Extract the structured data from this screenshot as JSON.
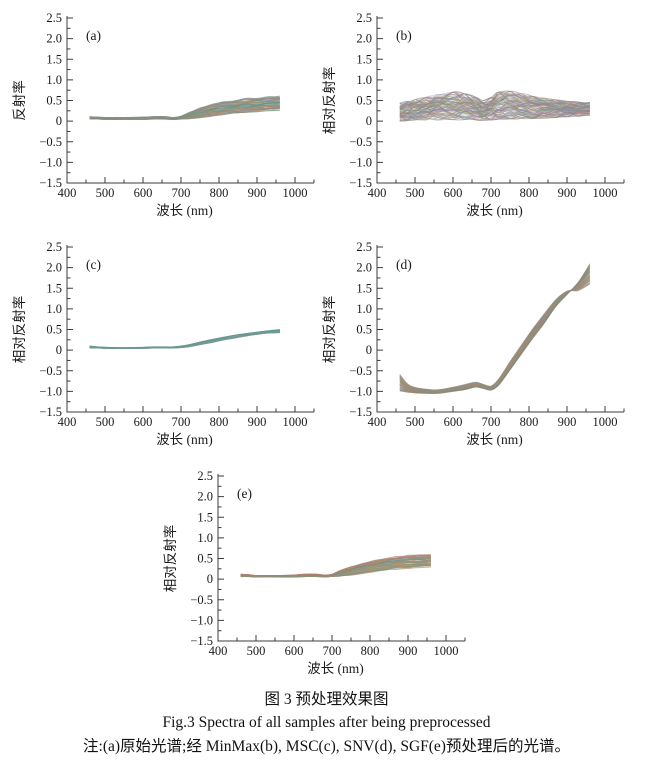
{
  "figure": {
    "caption_zh": "图 3  预处理效果图",
    "caption_en": "Fig.3  Spectra of all samples after being preprocessed",
    "note": "注:(a)原始光谱;经 MinMax(b), MSC(c), SNV(d), SGF(e)预处理后的光谱。"
  },
  "axes": {
    "xlabel": "波长 (nm)",
    "xlim": [
      400,
      1050
    ],
    "ylim": [
      -1.5,
      2.5
    ],
    "x_major_ticks": [
      400,
      500,
      600,
      700,
      800,
      900,
      1000
    ],
    "x_minor_ticks": [
      450,
      550,
      650,
      750,
      850,
      950,
      1050
    ],
    "y_major_ticks": [
      2.5,
      2.0,
      1.5,
      1.0,
      0.5,
      0,
      -0.5,
      -1.0,
      -1.5
    ],
    "y_major_labels": [
      "2.5",
      "2.0",
      "1.5",
      "1.0",
      "0.5",
      "0",
      "−0.5",
      "−1.0",
      "−1.5"
    ],
    "y_minor_ticks": [
      2.25,
      1.75,
      1.25,
      0.75,
      0.25,
      -0.25,
      -0.75,
      -1.25
    ],
    "axis_color": "#3c3c3c",
    "text_color": "#1a1a1a"
  },
  "palettes": {
    "default": [
      "#6b948e",
      "#8f9a72",
      "#b98a5e",
      "#7c8fa6",
      "#9b8f7e",
      "#ab7d72",
      "#5f8f7c",
      "#a6977e",
      "#8a8f94",
      "#bd9064"
    ],
    "teal": [
      "#5f938f",
      "#6f9d98",
      "#7aa39e",
      "#84a8a3",
      "#6b908c",
      "#75938f",
      "#8aa9a4"
    ],
    "noisy": [
      "#6b948e",
      "#8f9a72",
      "#b98a5e",
      "#7c8fa6",
      "#ab7d72",
      "#5f8f7c",
      "#a6977e",
      "#8a8f94",
      "#b07a8a",
      "#6a89b0",
      "#7aa35f",
      "#bd9064",
      "#9a7ab0",
      "#c08080"
    ]
  },
  "chart_data": [
    {
      "id": "a",
      "type": "line",
      "panel_label": "(a)",
      "ylabel": "反射率",
      "xlabel": "波长 (nm)",
      "description": "Raw reflectance spectra of all samples: flat band near 0.05–0.1 from 460–700 nm, rising to 0.27–0.6 at 960 nm",
      "x": [
        460,
        480,
        500,
        530,
        560,
        600,
        630,
        660,
        680,
        700,
        720,
        750,
        780,
        810,
        840,
        870,
        900,
        930,
        960
      ],
      "series": [
        {
          "name": "envelope_low",
          "values": [
            0.05,
            0.05,
            0.04,
            0.04,
            0.04,
            0.04,
            0.05,
            0.05,
            0.04,
            0.05,
            0.06,
            0.09,
            0.12,
            0.16,
            0.19,
            0.22,
            0.24,
            0.26,
            0.27
          ]
        },
        {
          "name": "envelope_high",
          "values": [
            0.11,
            0.1,
            0.09,
            0.09,
            0.09,
            0.1,
            0.11,
            0.11,
            0.09,
            0.12,
            0.2,
            0.32,
            0.4,
            0.46,
            0.5,
            0.54,
            0.56,
            0.58,
            0.6
          ]
        }
      ],
      "n_lines": 70,
      "jitter": 0.18,
      "opacity": 0.55,
      "stroke_width": 0.8,
      "palette": "default"
    },
    {
      "id": "b",
      "type": "line",
      "panel_label": "(b)",
      "ylabel": "相对反射率",
      "xlabel": "波长 (nm)",
      "description": "MinMax-normalized spectra: broad noisy band 0–0.7 with humps near 600 and 740 nm and a dip near 690 nm",
      "x": [
        460,
        480,
        500,
        530,
        560,
        600,
        630,
        660,
        680,
        700,
        720,
        750,
        780,
        810,
        840,
        870,
        900,
        930,
        960
      ],
      "series": [
        {
          "name": "envelope_low",
          "values": [
            0.02,
            0.03,
            0.04,
            0.05,
            0.05,
            0.06,
            0.06,
            0.05,
            0.04,
            0.05,
            0.07,
            0.08,
            0.08,
            0.08,
            0.09,
            0.1,
            0.12,
            0.13,
            0.15
          ]
        },
        {
          "name": "envelope_high",
          "values": [
            0.42,
            0.46,
            0.5,
            0.56,
            0.62,
            0.68,
            0.64,
            0.56,
            0.48,
            0.55,
            0.68,
            0.7,
            0.64,
            0.58,
            0.54,
            0.5,
            0.47,
            0.45,
            0.44
          ]
        }
      ],
      "n_lines": 110,
      "jitter": 0.55,
      "opacity": 0.4,
      "stroke_width": 0.7,
      "palette": "noisy"
    },
    {
      "id": "c",
      "type": "line",
      "panel_label": "(c)",
      "ylabel": "相对反射率",
      "xlabel": "波长 (nm)",
      "description": "MSC-corrected spectra: very narrow teal band, flat near 0.05 until 700 nm, rising to about 0.42–0.5 at 960 nm",
      "x": [
        460,
        480,
        500,
        530,
        560,
        600,
        630,
        660,
        680,
        700,
        720,
        750,
        780,
        810,
        840,
        870,
        900,
        930,
        960
      ],
      "series": [
        {
          "name": "envelope_low",
          "values": [
            0.05,
            0.05,
            0.04,
            0.04,
            0.04,
            0.04,
            0.05,
            0.05,
            0.05,
            0.06,
            0.08,
            0.13,
            0.18,
            0.24,
            0.29,
            0.34,
            0.38,
            0.41,
            0.42
          ]
        },
        {
          "name": "envelope_high",
          "values": [
            0.1,
            0.08,
            0.07,
            0.06,
            0.06,
            0.07,
            0.08,
            0.08,
            0.08,
            0.1,
            0.13,
            0.2,
            0.26,
            0.31,
            0.36,
            0.4,
            0.44,
            0.47,
            0.5
          ]
        }
      ],
      "n_lines": 45,
      "jitter": 0.2,
      "opacity": 0.5,
      "stroke_width": 0.8,
      "palette": "teal"
    },
    {
      "id": "d",
      "type": "line",
      "panel_label": "(d)",
      "ylabel": "相对反射率",
      "xlabel": "波长 (nm)",
      "description": "SNV-transformed spectra: start ≈ −1 to −0.6 at 460 nm, trough ≈ −1.05 near 550 nm, small bump at 650 nm, steep rise after 700 nm crossing near (890, 1.4) and fanning to 1.6–2.1 at 960 nm",
      "x": [
        460,
        480,
        500,
        530,
        560,
        600,
        630,
        660,
        680,
        700,
        720,
        750,
        780,
        810,
        840,
        870,
        900,
        930,
        960
      ],
      "series": [
        {
          "name": "envelope_low",
          "values": [
            -1.0,
            -1.02,
            -1.04,
            -1.05,
            -1.05,
            -1.0,
            -0.96,
            -0.9,
            -0.93,
            -0.97,
            -0.85,
            -0.48,
            -0.1,
            0.28,
            0.65,
            1.05,
            1.35,
            1.45,
            1.6
          ]
        },
        {
          "name": "envelope_high",
          "values": [
            -0.58,
            -0.82,
            -0.9,
            -0.95,
            -0.96,
            -0.9,
            -0.84,
            -0.78,
            -0.83,
            -0.87,
            -0.7,
            -0.28,
            0.12,
            0.52,
            0.88,
            1.22,
            1.43,
            1.65,
            2.1
          ]
        }
      ],
      "n_lines": 60,
      "jitter": 0.12,
      "opacity": 0.5,
      "stroke_width": 0.8,
      "palette": "default",
      "pinch_x": 905
    },
    {
      "id": "e",
      "type": "line",
      "panel_label": "(e)",
      "ylabel": "相对反射率",
      "xlabel": "波长 (nm)",
      "description": "SGF-smoothed spectra: flat band near 0.05–0.12 until 700 nm, rising smoothly to 0.3–0.6 at 960 nm",
      "x": [
        460,
        480,
        500,
        530,
        560,
        600,
        630,
        660,
        680,
        700,
        720,
        750,
        780,
        810,
        840,
        870,
        900,
        930,
        960
      ],
      "series": [
        {
          "name": "envelope_low",
          "values": [
            0.06,
            0.06,
            0.05,
            0.05,
            0.05,
            0.05,
            0.06,
            0.06,
            0.05,
            0.06,
            0.07,
            0.1,
            0.14,
            0.18,
            0.22,
            0.25,
            0.27,
            0.29,
            0.3
          ]
        },
        {
          "name": "envelope_high",
          "values": [
            0.12,
            0.11,
            0.09,
            0.09,
            0.09,
            0.1,
            0.12,
            0.12,
            0.1,
            0.12,
            0.2,
            0.3,
            0.38,
            0.44,
            0.5,
            0.54,
            0.57,
            0.59,
            0.6
          ]
        }
      ],
      "n_lines": 70,
      "jitter": 0.18,
      "opacity": 0.55,
      "stroke_width": 0.8,
      "palette": "default"
    }
  ]
}
